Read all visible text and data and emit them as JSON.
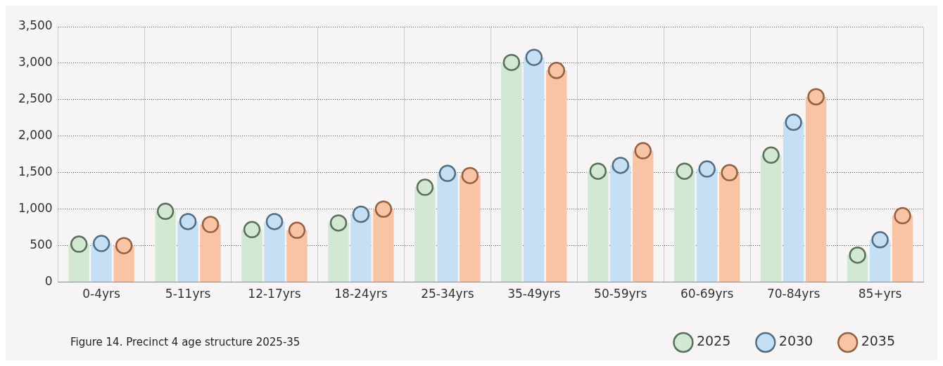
{
  "chart_data": {
    "type": "lollipop",
    "categories": [
      "0-4yrs",
      "5-11yrs",
      "12-17yrs",
      "18-24yrs",
      "25-34yrs",
      "35-49yrs",
      "50-59yrs",
      "60-69yrs",
      "70-84yrs",
      "85+yrs"
    ],
    "series": [
      {
        "name": "2025",
        "color": "#d3e8d3",
        "values": [
          520,
          970,
          720,
          810,
          1300,
          3010,
          1520,
          1520,
          1740,
          370
        ]
      },
      {
        "name": "2030",
        "color": "#c5e0f5",
        "values": [
          530,
          830,
          830,
          930,
          1490,
          3080,
          1600,
          1550,
          2190,
          580
        ]
      },
      {
        "name": "2035",
        "color": "#f9c4a5",
        "values": [
          500,
          790,
          710,
          1000,
          1460,
          2900,
          1800,
          1500,
          2540,
          910
        ]
      }
    ],
    "ylim": [
      0,
      3500
    ],
    "yticks": [
      0,
      500,
      {
        "value": 1000,
        "label": "1,000"
      },
      {
        "value": 1500,
        "label": "1,500"
      },
      {
        "value": 2000,
        "label": "2,000"
      },
      {
        "value": 2500,
        "label": "2,500"
      },
      {
        "value": 3000,
        "label": "3,000"
      },
      {
        "value": 3500,
        "label": "3,500"
      }
    ],
    "grid": true,
    "legend": "bottom right",
    "marker": "circle",
    "annotations": [
      "Figure 14. Precinct 4 age structure 2025-35"
    ]
  }
}
